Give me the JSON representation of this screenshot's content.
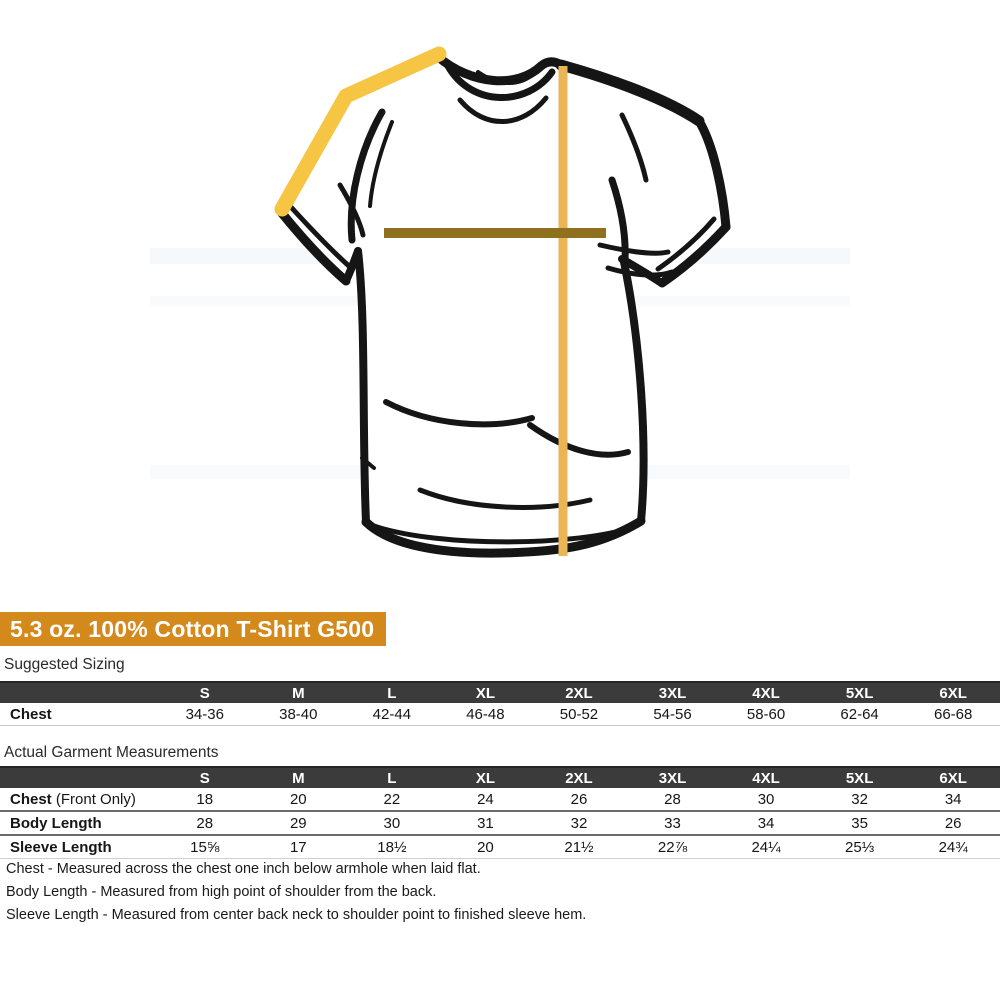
{
  "banner": {
    "title": "5.3 oz. 100% Cotton T-Shirt G500",
    "bg_color": "#d4891d",
    "text_color": "#ffffff"
  },
  "sections": {
    "suggested_sizing_label": "Suggested Sizing",
    "actual_measurements_label": "Actual Garment Measurements"
  },
  "tables": {
    "suggested_sizing": {
      "header": [
        "",
        "S",
        "M",
        "L",
        "XL",
        "2XL",
        "3XL",
        "4XL",
        "5XL",
        "6XL"
      ],
      "rows": [
        {
          "label_bold": "Chest",
          "label_rest": "",
          "values": [
            "34-36",
            "38-40",
            "42-44",
            "46-48",
            "50-52",
            "54-56",
            "58-60",
            "62-64",
            "66-68"
          ]
        }
      ]
    },
    "garment_measurements": {
      "header": [
        "",
        "S",
        "M",
        "L",
        "XL",
        "2XL",
        "3XL",
        "4XL",
        "5XL",
        "6XL"
      ],
      "rows": [
        {
          "label_bold": "Chest",
          "label_rest": " (Front Only)",
          "values": [
            "18",
            "20",
            "22",
            "24",
            "26",
            "28",
            "30",
            "32",
            "34"
          ]
        },
        {
          "label_bold": "Body Length",
          "label_rest": "",
          "values": [
            "28",
            "29",
            "30",
            "31",
            "32",
            "33",
            "34",
            "35",
            "26"
          ]
        },
        {
          "label_bold": "Sleeve Length",
          "label_rest": "",
          "values": [
            "15⅝",
            "17",
            "18½",
            "20",
            "21½",
            "22⅞",
            "24¼",
            "25⅓",
            "24¾"
          ]
        }
      ]
    }
  },
  "notes": [
    "Chest - Measured across the chest one inch below armhole when laid flat.",
    "Body Length - Measured from high point of shoulder from the back.",
    "Sleeve Length - Measured from center back neck to shoulder point to finished sleeve hem."
  ],
  "illustration": {
    "subject": "t-shirt line drawing with measurement guide lines",
    "outline_color": "#151515",
    "sleeve_line_color": "#f7c544",
    "body_line_color": "#e9b557",
    "chest_line_color": "#8f701f"
  }
}
